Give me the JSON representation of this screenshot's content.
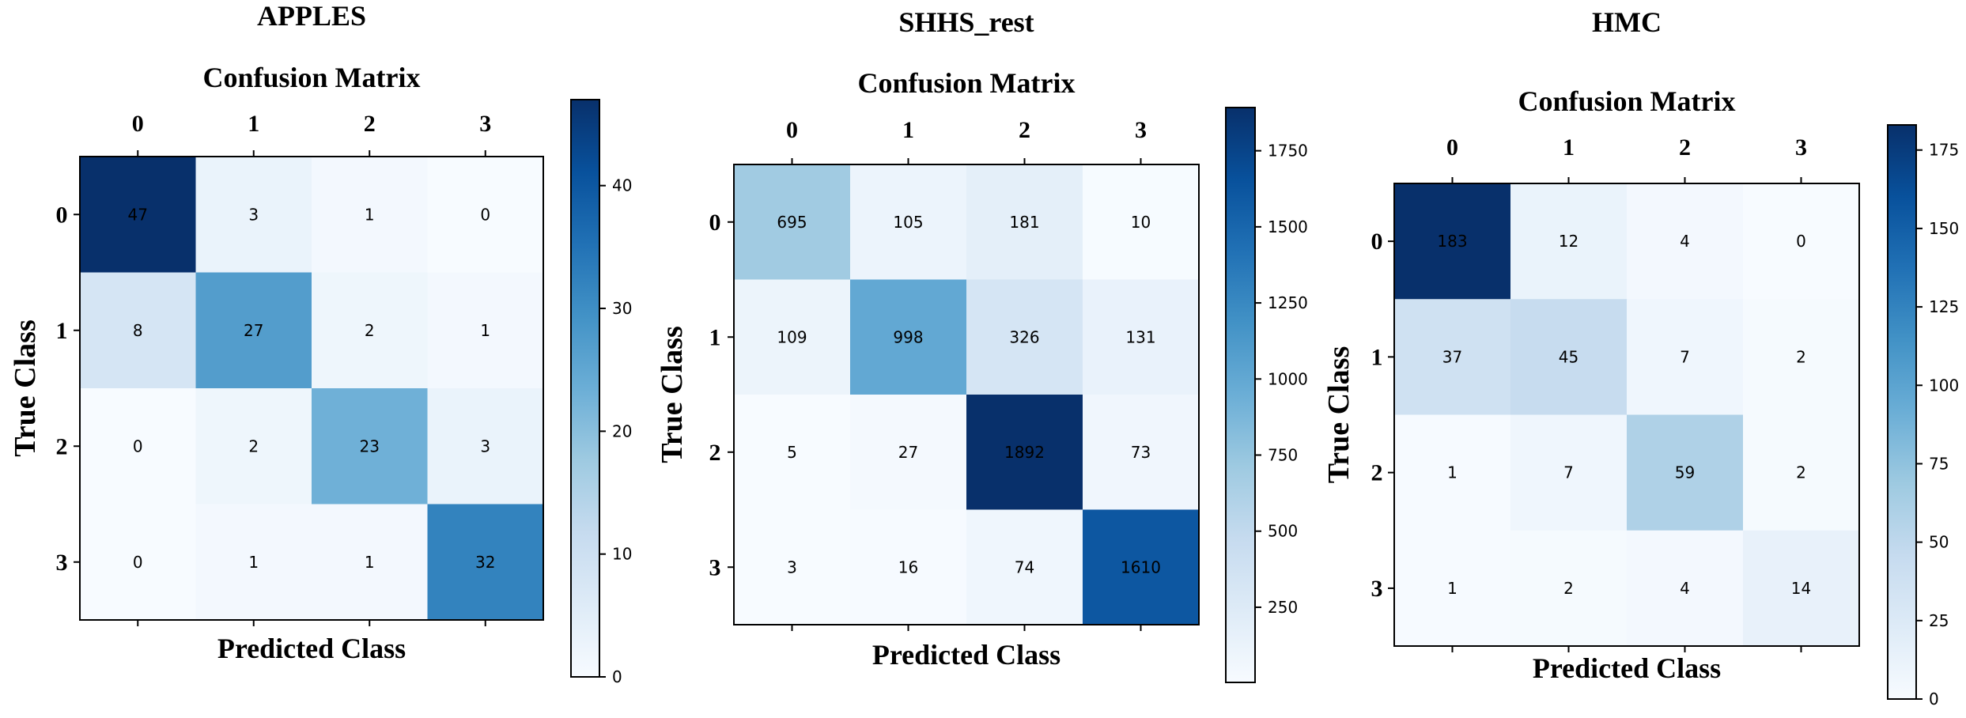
{
  "chart_data": [
    {
      "type": "heatmap",
      "panel_title": "APPLES",
      "title": "Confusion Matrix",
      "xlabel": "Predicted Class",
      "ylabel": "True Class",
      "x_tick_labels": [
        "0",
        "1",
        "2",
        "3"
      ],
      "y_tick_labels": [
        "0",
        "1",
        "2",
        "3"
      ],
      "matrix": [
        [
          47,
          3,
          1,
          0
        ],
        [
          8,
          27,
          2,
          1
        ],
        [
          0,
          2,
          23,
          3
        ],
        [
          0,
          1,
          1,
          32
        ]
      ],
      "cell_labels": [
        [
          "47",
          "3",
          "1",
          "0"
        ],
        [
          "8",
          "27",
          "2",
          "1"
        ],
        [
          "0",
          "2",
          "23",
          "3"
        ],
        [
          "0",
          "1",
          "1",
          "32"
        ]
      ],
      "colormap": "Blues",
      "vmin": 0,
      "vmax": 47,
      "colorbar_ticks": [
        0,
        10,
        20,
        30,
        40
      ],
      "colorbar_tick_labels": [
        "0",
        "10",
        "20",
        "30",
        "40"
      ]
    },
    {
      "type": "heatmap",
      "panel_title": "SHHS_rest",
      "title": "Confusion Matrix",
      "xlabel": "Predicted Class",
      "ylabel": "True Class",
      "x_tick_labels": [
        "0",
        "1",
        "2",
        "3"
      ],
      "y_tick_labels": [
        "0",
        "1",
        "2",
        "3"
      ],
      "matrix": [
        [
          695,
          105,
          181,
          10
        ],
        [
          109,
          998,
          326,
          131
        ],
        [
          5,
          27,
          1892,
          73
        ],
        [
          3,
          16,
          74,
          1610
        ]
      ],
      "cell_labels": [
        [
          "695",
          "105",
          "181",
          "10"
        ],
        [
          "109",
          "998",
          "326",
          "131"
        ],
        [
          "5",
          "27",
          "1892",
          "73"
        ],
        [
          "3",
          "16",
          "74",
          "1610"
        ]
      ],
      "colormap": "Blues",
      "vmin": 3,
      "vmax": 1892,
      "colorbar_ticks": [
        250,
        500,
        750,
        1000,
        1250,
        1500,
        1750
      ],
      "colorbar_tick_labels": [
        "250",
        "500",
        "750",
        "1000",
        "1250",
        "1500",
        "1750"
      ]
    },
    {
      "type": "heatmap",
      "panel_title": "HMC",
      "title": "Confusion Matrix",
      "xlabel": "Predicted Class",
      "ylabel": "True Class",
      "x_tick_labels": [
        "0",
        "1",
        "2",
        "3"
      ],
      "y_tick_labels": [
        "0",
        "1",
        "2",
        "3"
      ],
      "matrix": [
        [
          183,
          12,
          4,
          0
        ],
        [
          37,
          45,
          7,
          2
        ],
        [
          1,
          7,
          59,
          2
        ],
        [
          1,
          2,
          4,
          14
        ]
      ],
      "cell_labels": [
        [
          "183",
          "12",
          "4",
          "0"
        ],
        [
          "37",
          "45",
          "7",
          "2"
        ],
        [
          "1",
          "7",
          "59",
          "2"
        ],
        [
          "1",
          "2",
          "4",
          "14"
        ]
      ],
      "colormap": "Blues",
      "vmin": 0,
      "vmax": 183,
      "colorbar_ticks": [
        0,
        25,
        50,
        75,
        100,
        125,
        150,
        175
      ],
      "colorbar_tick_labels": [
        "0",
        "25",
        "50",
        "75",
        "100",
        "125",
        "150",
        "175"
      ]
    }
  ]
}
